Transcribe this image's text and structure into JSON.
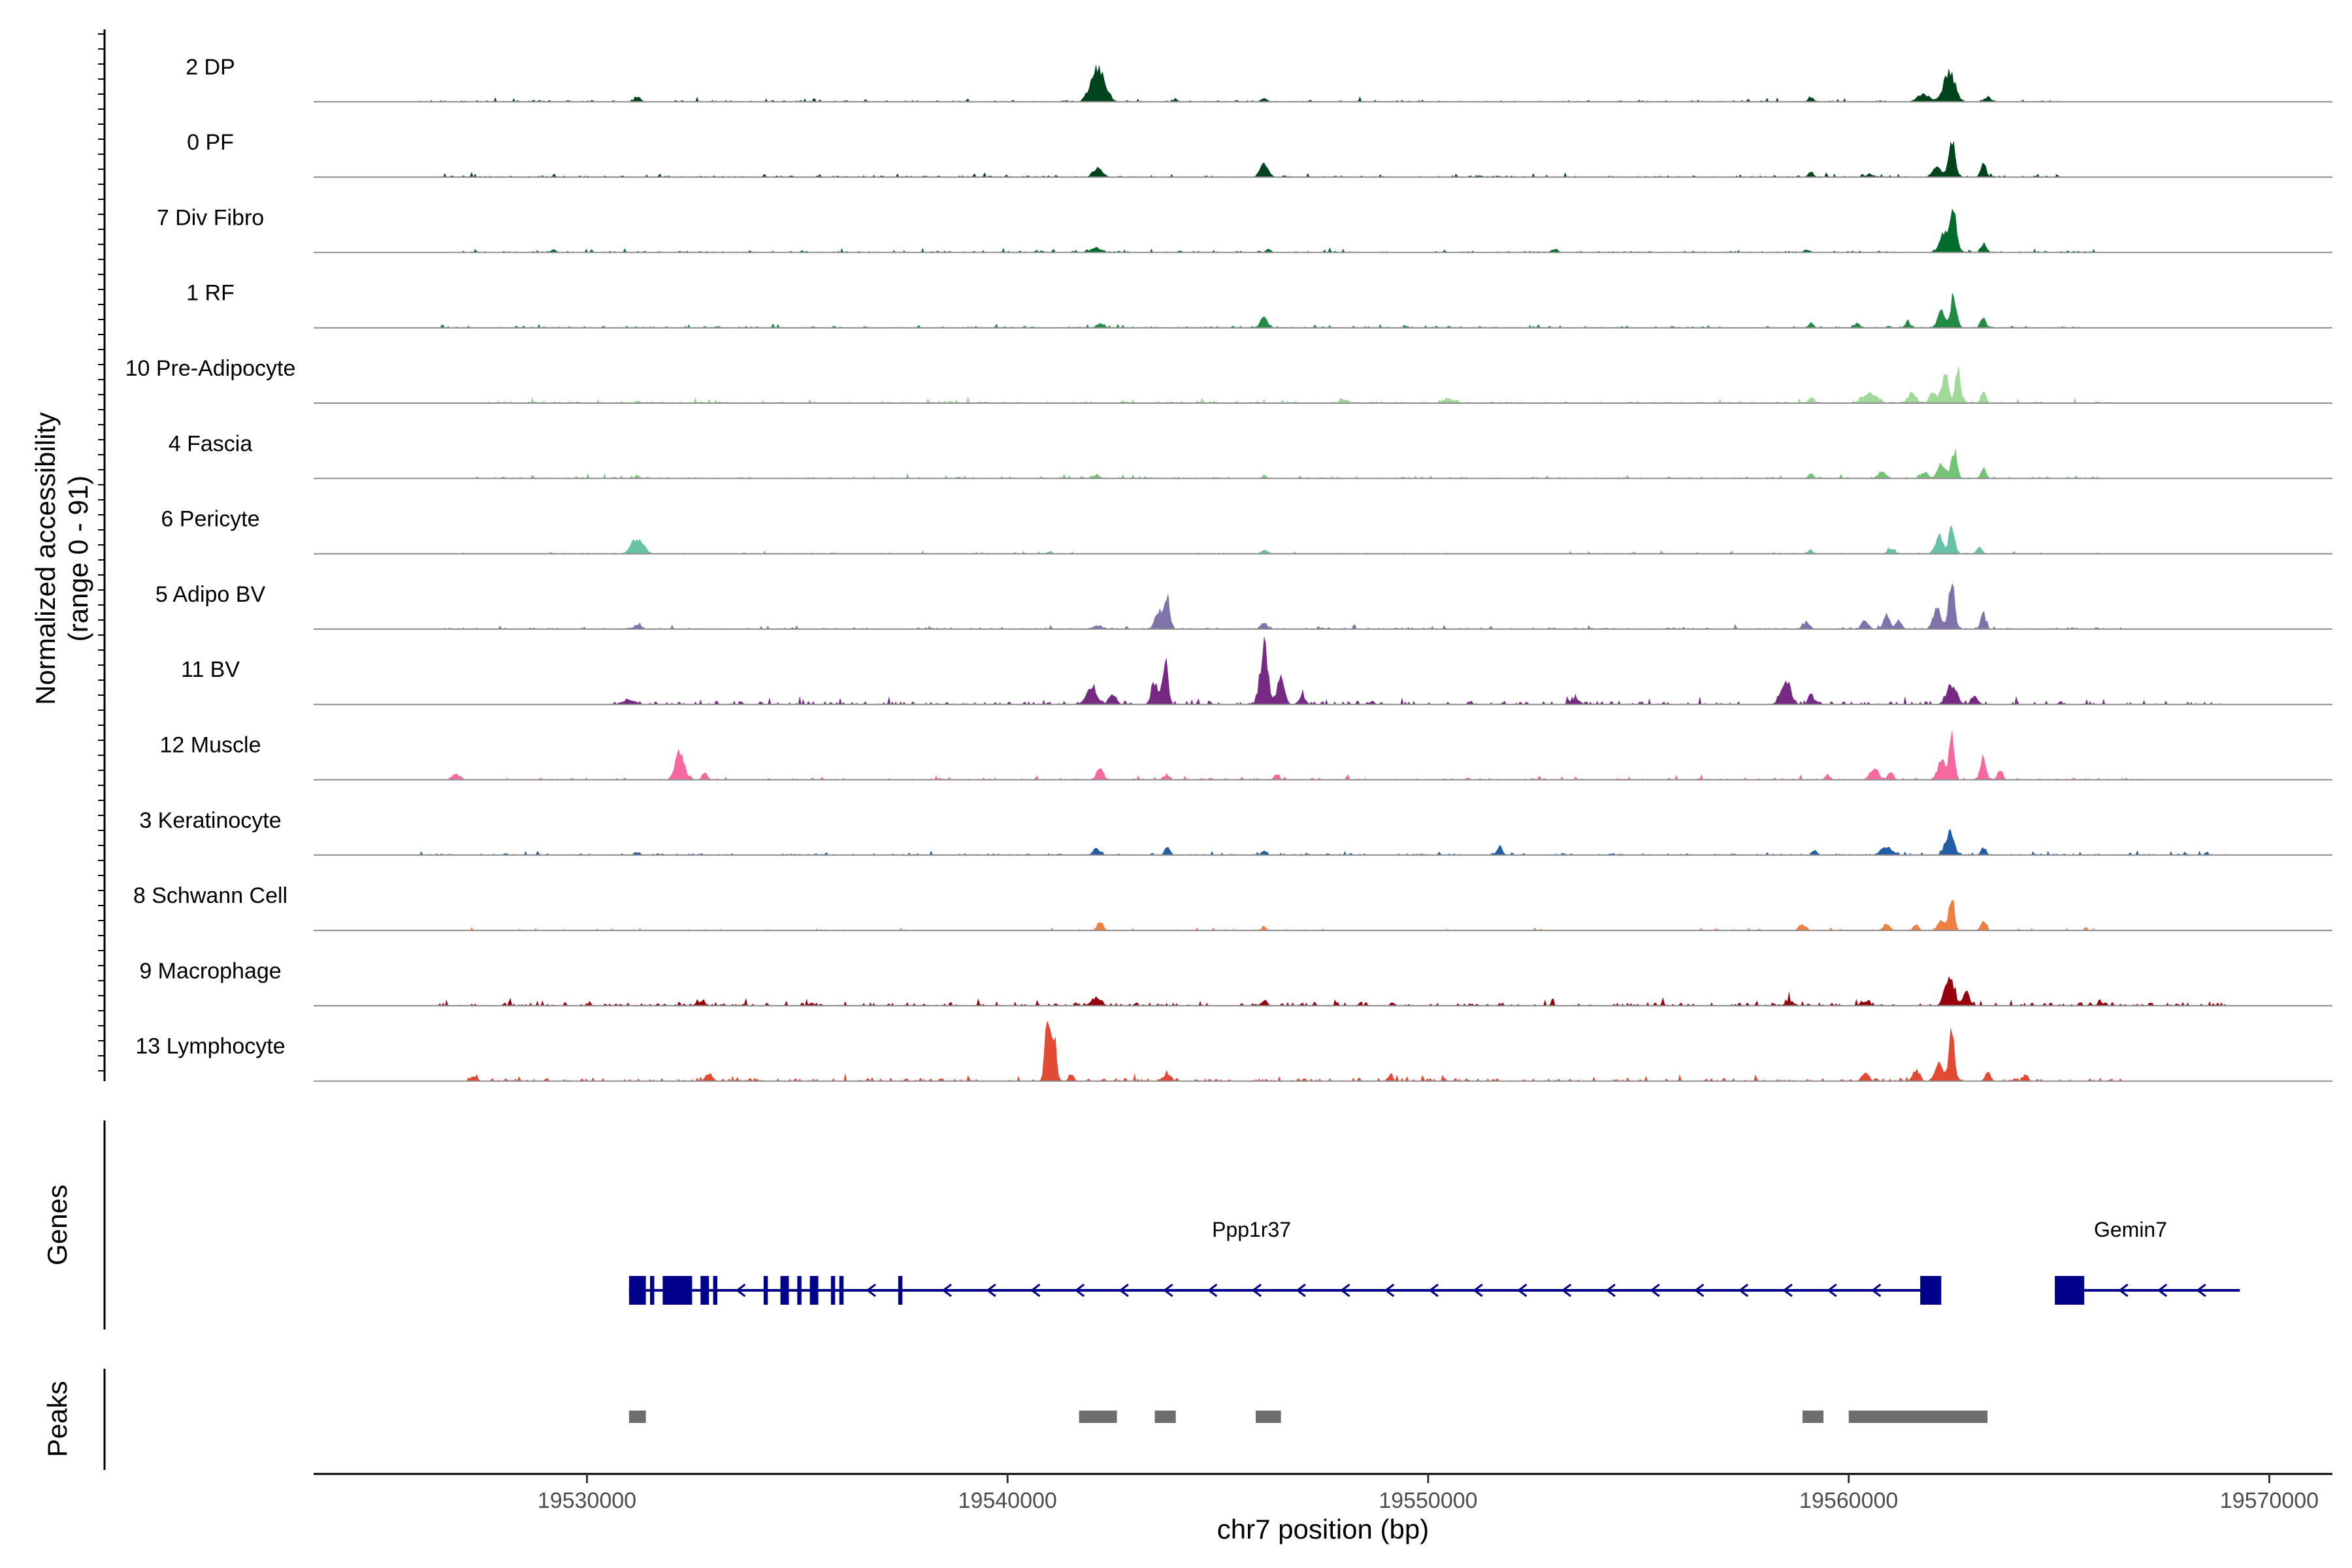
{
  "chart_data": {
    "type": "area",
    "title": "",
    "xlabel": "chr7 position (bp)",
    "ylabel": "Normalized accessibility",
    "ylabel_sub": "(range 0 - 91)",
    "xlim": [
      19523500,
      19571500
    ],
    "xticks": [
      19530000,
      19540000,
      19550000,
      19560000,
      19570000
    ],
    "xtick_labels": [
      "19530000",
      "19540000",
      "19550000",
      "19560000",
      "19570000"
    ],
    "ylim": [
      0,
      91
    ],
    "tracks": [
      {
        "name": "2 DP",
        "color": "#00441b",
        "baseline": 1.5,
        "noise_start": 19526000,
        "noise_end": 19565000,
        "peaks": [
          [
            19531200,
            6,
            80
          ],
          [
            19542150,
            42,
            160
          ],
          [
            19544000,
            3,
            60
          ],
          [
            19546100,
            4,
            80
          ],
          [
            19559100,
            6,
            60
          ],
          [
            19561800,
            8,
            160
          ],
          [
            19562400,
            38,
            130
          ],
          [
            19563300,
            6,
            80
          ]
        ]
      },
      {
        "name": "0 PF",
        "color": "#00441b",
        "baseline": 1.5,
        "noise_start": 19526500,
        "noise_end": 19565000,
        "peaks": [
          [
            19542150,
            12,
            110
          ],
          [
            19546100,
            16,
            100
          ],
          [
            19559100,
            7,
            60
          ],
          [
            19560500,
            4,
            80
          ],
          [
            19562100,
            12,
            100
          ],
          [
            19562450,
            48,
            80
          ],
          [
            19563200,
            20,
            60
          ]
        ]
      },
      {
        "name": "7 Div Fibro",
        "color": "#006d2c",
        "baseline": 1.5,
        "noise_start": 19526500,
        "noise_end": 19566000,
        "peaks": [
          [
            19529200,
            4,
            60
          ],
          [
            19542100,
            6,
            120
          ],
          [
            19546200,
            5,
            60
          ],
          [
            19553000,
            4,
            80
          ],
          [
            19559000,
            4,
            60
          ],
          [
            19562300,
            28,
            120
          ],
          [
            19562500,
            52,
            70
          ],
          [
            19563200,
            12,
            60
          ]
        ]
      },
      {
        "name": "1 RF",
        "color": "#238b45",
        "baseline": 1.5,
        "noise_start": 19526500,
        "noise_end": 19565500,
        "peaks": [
          [
            19542200,
            5,
            80
          ],
          [
            19546100,
            14,
            80
          ],
          [
            19559100,
            7,
            60
          ],
          [
            19560200,
            6,
            60
          ],
          [
            19561400,
            8,
            60
          ],
          [
            19562200,
            20,
            90
          ],
          [
            19562500,
            40,
            70
          ],
          [
            19563200,
            14,
            60
          ]
        ]
      },
      {
        "name": "10 Pre-Adipocyte",
        "color": "#a1d99b",
        "baseline": 2,
        "noise_start": 19527500,
        "noise_end": 19566500,
        "peaks": [
          [
            19531200,
            3,
            60
          ],
          [
            19548000,
            4,
            100
          ],
          [
            19550500,
            5,
            120
          ],
          [
            19559100,
            8,
            60
          ],
          [
            19560500,
            14,
            160
          ],
          [
            19561500,
            12,
            100
          ],
          [
            19562000,
            14,
            80
          ],
          [
            19562300,
            40,
            80
          ],
          [
            19562600,
            44,
            60
          ],
          [
            19563200,
            14,
            60
          ]
        ]
      },
      {
        "name": "4 Fascia",
        "color": "#74c476",
        "baseline": 1.5,
        "noise_start": 19527000,
        "noise_end": 19566000,
        "peaks": [
          [
            19531200,
            3,
            60
          ],
          [
            19542100,
            4,
            80
          ],
          [
            19546100,
            4,
            60
          ],
          [
            19559100,
            6,
            60
          ],
          [
            19560800,
            8,
            100
          ],
          [
            19561800,
            8,
            80
          ],
          [
            19562200,
            18,
            90
          ],
          [
            19562500,
            34,
            70
          ],
          [
            19563200,
            14,
            60
          ]
        ]
      },
      {
        "name": "6 Pericyte",
        "color": "#66c2a5",
        "baseline": 1,
        "noise_start": 19527000,
        "noise_end": 19566000,
        "peaks": [
          [
            19531200,
            20,
            140
          ],
          [
            19541000,
            3,
            60
          ],
          [
            19546100,
            5,
            70
          ],
          [
            19559100,
            5,
            60
          ],
          [
            19561000,
            6,
            80
          ],
          [
            19562150,
            22,
            90
          ],
          [
            19562450,
            36,
            70
          ],
          [
            19563100,
            10,
            60
          ]
        ]
      },
      {
        "name": "5 Adipo BV",
        "color": "#8073ac",
        "baseline": 1.5,
        "noise_start": 19526500,
        "noise_end": 19566500,
        "peaks": [
          [
            19531200,
            6,
            80
          ],
          [
            19542100,
            4,
            80
          ],
          [
            19543600,
            24,
            90
          ],
          [
            19543800,
            40,
            60
          ],
          [
            19546100,
            8,
            80
          ],
          [
            19559000,
            10,
            70
          ],
          [
            19560400,
            10,
            80
          ],
          [
            19560900,
            16,
            80
          ],
          [
            19561200,
            12,
            60
          ],
          [
            19562100,
            28,
            90
          ],
          [
            19562450,
            60,
            70
          ],
          [
            19563200,
            20,
            60
          ]
        ]
      },
      {
        "name": "11 BV",
        "color": "#762a83",
        "baseline": 3,
        "noise_start": 19530500,
        "noise_end": 19569000,
        "peaks": [
          [
            19531000,
            6,
            160
          ],
          [
            19542000,
            20,
            130
          ],
          [
            19542500,
            14,
            80
          ],
          [
            19543500,
            26,
            80
          ],
          [
            19543750,
            62,
            60
          ],
          [
            19546100,
            74,
            90
          ],
          [
            19546500,
            40,
            80
          ],
          [
            19547000,
            10,
            80
          ],
          [
            19553500,
            8,
            100
          ],
          [
            19558500,
            28,
            120
          ],
          [
            19559100,
            14,
            60
          ],
          [
            19562450,
            24,
            120
          ],
          [
            19563000,
            10,
            80
          ]
        ]
      },
      {
        "name": "12 Muscle",
        "color": "#f768a1",
        "baseline": 1.5,
        "noise_start": 19526500,
        "noise_end": 19567000,
        "peaks": [
          [
            19526900,
            6,
            100
          ],
          [
            19532200,
            36,
            100
          ],
          [
            19532800,
            10,
            60
          ],
          [
            19542200,
            18,
            70
          ],
          [
            19543800,
            6,
            60
          ],
          [
            19546400,
            6,
            60
          ],
          [
            19559500,
            6,
            60
          ],
          [
            19560600,
            14,
            100
          ],
          [
            19561000,
            12,
            60
          ],
          [
            19562200,
            26,
            80
          ],
          [
            19562450,
            66,
            60
          ],
          [
            19563200,
            32,
            60
          ],
          [
            19563600,
            12,
            60
          ]
        ]
      },
      {
        "name": "3 Keratinocyte",
        "color": "#225ea8",
        "baseline": 1.5,
        "noise_start": 19526000,
        "noise_end": 19569000,
        "peaks": [
          [
            19531200,
            4,
            60
          ],
          [
            19542100,
            8,
            80
          ],
          [
            19543800,
            12,
            60
          ],
          [
            19546100,
            5,
            60
          ],
          [
            19551700,
            12,
            60
          ],
          [
            19559200,
            6,
            60
          ],
          [
            19560900,
            10,
            140
          ],
          [
            19562400,
            30,
            100
          ],
          [
            19563200,
            10,
            60
          ]
        ]
      },
      {
        "name": "8 Schwann Cell",
        "color": "#ef8042",
        "baseline": 1,
        "noise_start": 19527000,
        "noise_end": 19566500,
        "peaks": [
          [
            19542200,
            12,
            70
          ],
          [
            19546100,
            4,
            60
          ],
          [
            19558900,
            8,
            80
          ],
          [
            19560900,
            8,
            80
          ],
          [
            19561600,
            8,
            60
          ],
          [
            19562200,
            14,
            80
          ],
          [
            19562450,
            46,
            60
          ],
          [
            19563200,
            12,
            60
          ]
        ]
      },
      {
        "name": "9 Macrophage",
        "color": "#99000d",
        "baseline": 3,
        "noise_start": 19526500,
        "noise_end": 19569000,
        "peaks": [
          [
            19532700,
            6,
            100
          ],
          [
            19542100,
            10,
            120
          ],
          [
            19546100,
            5,
            80
          ],
          [
            19558600,
            6,
            100
          ],
          [
            19560400,
            5,
            100
          ],
          [
            19562400,
            36,
            110
          ],
          [
            19562800,
            16,
            80
          ],
          [
            19566000,
            4,
            80
          ]
        ]
      },
      {
        "name": "13 Lymphocyte",
        "color": "#e34a33",
        "baseline": 2.5,
        "noise_start": 19526800,
        "noise_end": 19566500,
        "peaks": [
          [
            19527300,
            6,
            80
          ],
          [
            19532900,
            10,
            80
          ],
          [
            19540950,
            80,
            60
          ],
          [
            19541100,
            60,
            60
          ],
          [
            19541500,
            6,
            60
          ],
          [
            19543800,
            10,
            80
          ],
          [
            19549100,
            8,
            60
          ],
          [
            19560400,
            10,
            80
          ],
          [
            19561600,
            14,
            80
          ],
          [
            19562150,
            22,
            100
          ],
          [
            19562450,
            74,
            60
          ],
          [
            19563300,
            12,
            60
          ],
          [
            19564200,
            8,
            60
          ]
        ]
      }
    ],
    "genes_track": {
      "label": "Genes",
      "color": "#00008b",
      "genes": [
        {
          "name": "Ppp1r37",
          "strand": "-",
          "start": 19531000,
          "end": 19562200,
          "label_pos": 19545800,
          "exons": [
            [
              19531000,
              19531400
            ],
            [
              19531500,
              19531600
            ],
            [
              19531800,
              19532500
            ],
            [
              19532700,
              19532900
            ],
            [
              19533000,
              19533100
            ],
            [
              19534200,
              19534300
            ],
            [
              19534600,
              19534800
            ],
            [
              19535000,
              19535100
            ],
            [
              19535300,
              19535500
            ],
            [
              19535800,
              19535900
            ],
            [
              19536000,
              19536100
            ],
            [
              19537400,
              19537500
            ],
            [
              19561700,
              19562200
            ]
          ]
        },
        {
          "name": "Gemin7",
          "strand": "-",
          "start": 19564900,
          "end": 19569300,
          "label_pos": 19566700,
          "exons": [
            [
              19564900,
              19565600
            ]
          ]
        }
      ]
    },
    "peaks_track": {
      "label": "Peaks",
      "color": "#6e6e6e",
      "regions": [
        [
          19531000,
          19531400
        ],
        [
          19541700,
          19542600
        ],
        [
          19543500,
          19544000
        ],
        [
          19545900,
          19546500
        ],
        [
          19558900,
          19559400
        ],
        [
          19560000,
          19563300
        ]
      ]
    }
  }
}
